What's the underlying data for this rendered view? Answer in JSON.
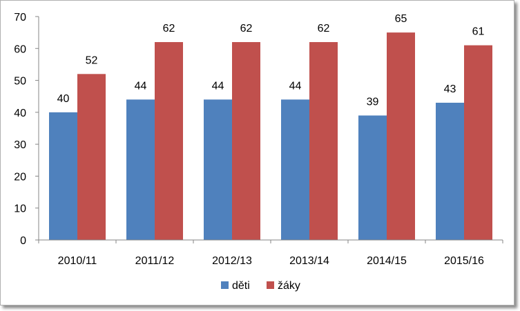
{
  "chart_data": {
    "type": "bar",
    "categories": [
      "2010/11",
      "2011/12",
      "2012/13",
      "2013/14",
      "2014/15",
      "2015/16"
    ],
    "series": [
      {
        "name": "děti",
        "values": [
          40,
          44,
          44,
          44,
          39,
          43
        ],
        "color": "#4f81bd"
      },
      {
        "name": "žáky",
        "values": [
          52,
          62,
          62,
          62,
          65,
          61
        ],
        "color": "#c0504d"
      }
    ],
    "title": "",
    "xlabel": "",
    "ylabel": "",
    "ylim": [
      0,
      70
    ],
    "yticks": [
      0,
      10,
      20,
      30,
      40,
      50,
      60,
      70
    ],
    "grid": false,
    "data_labels": true,
    "legend_position": "bottom"
  }
}
